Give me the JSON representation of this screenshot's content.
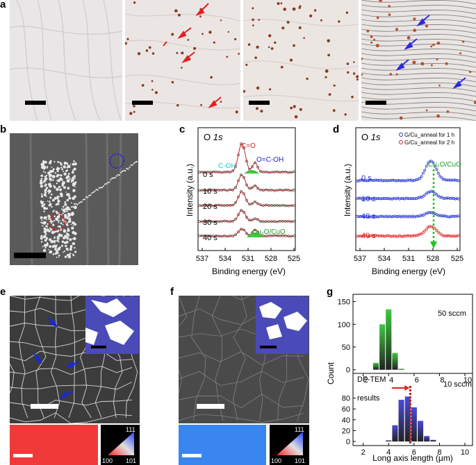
{
  "panels": {
    "a": "a",
    "b": "b",
    "c": "c",
    "d": "d",
    "e": "e",
    "f": "f",
    "g": "g"
  },
  "colors": {
    "bar_green": "#3ec93e",
    "bar_blue": "#4b4bd8",
    "marker_red": "#e02020",
    "marker_blue": "#2020e0",
    "ebsd_red": "#f03a3a",
    "ebsd_blue": "#3a86f0",
    "inset_purple": "#4a4ab8"
  },
  "ipf": {
    "top": "111",
    "left": "100",
    "right": "101"
  },
  "panel_c": {
    "element": "O",
    "orbital": "1s",
    "peaks": {
      "coh": "C-OH",
      "co": "C=O",
      "ococh": "O=C-OH",
      "cu": "Cu₂O/CuO"
    },
    "times": [
      "0 s",
      "10 s",
      "20 s",
      "30 s",
      "40 s"
    ],
    "xlabel": "Binding energy (eV)",
    "ylabel": "Intensity (a.u.)",
    "xticks": [
      "537",
      "534",
      "531",
      "528",
      "525"
    ]
  },
  "panel_d": {
    "element": "O",
    "orbital": "1s",
    "legend": [
      "G/Cu_anneal for 1 h",
      "G/Cu_anneal for 2 h"
    ],
    "times": [
      "0 s",
      "10 s",
      "40 s",
      "40 s"
    ],
    "cu": "Cu₂O/CuO",
    "xlabel": "Binding energy (eV)",
    "ylabel": "Intensity (a.u.)",
    "xticks": [
      "537",
      "534",
      "531",
      "528",
      "525"
    ]
  },
  "chart_data": {
    "type": "bar",
    "xlabel": "Long axis length (μm)",
    "ylabel": "Count",
    "xticks": [
      "2",
      "4",
      "6",
      "8",
      "10"
    ],
    "series": [
      {
        "name": "50 sccm",
        "x": [
          3,
          3.5,
          4,
          4.5,
          5,
          5.5
        ],
        "values": [
          15,
          100,
          133,
          37,
          2,
          0
        ],
        "ylim": [
          -5,
          160
        ],
        "yticks": [
          "0",
          "50",
          "100",
          "150"
        ]
      },
      {
        "name": "10 sccm",
        "x": [
          2.5,
          3,
          3.5,
          4,
          4.5,
          5,
          5.5,
          6,
          6.5,
          7,
          7.5,
          8,
          8.5,
          9,
          9.5,
          10
        ],
        "values": [
          0,
          0,
          0,
          2,
          30,
          77,
          83,
          63,
          38,
          10,
          3,
          0,
          0,
          0,
          0,
          0
        ],
        "ylim": [
          -5,
          100
        ],
        "yticks": [
          "0",
          "20",
          "40",
          "60",
          "80"
        ]
      }
    ],
    "annotation": {
      "text1": "DF-TEM",
      "text2": "results",
      "x": 5.7
    }
  }
}
